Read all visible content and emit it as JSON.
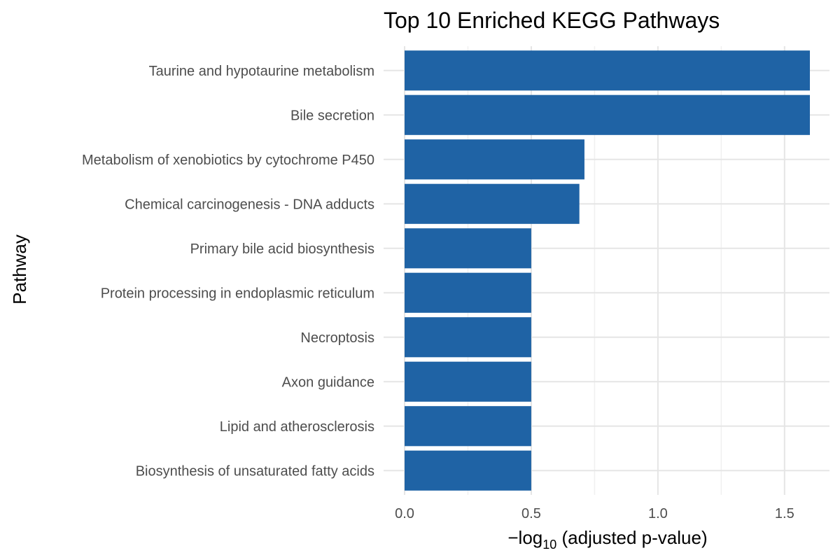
{
  "chart_data": {
    "type": "bar",
    "orientation": "horizontal",
    "title": "Top 10 Enriched KEGG Pathways",
    "xlabel_prefix": "−log",
    "xlabel_sub": "10",
    "xlabel_suffix": " (adjusted p-value)",
    "ylabel": "Pathway",
    "categories": [
      "Taurine and hypotaurine metabolism",
      "Bile secretion",
      "Metabolism of xenobiotics by cytochrome P450",
      "Chemical carcinogenesis - DNA adducts",
      "Primary bile acid biosynthesis",
      "Protein processing in endoplasmic reticulum",
      "Necroptosis",
      "Axon guidance",
      "Lipid and atherosclerosis",
      "Biosynthesis of unsaturated fatty acids"
    ],
    "values": [
      1.6,
      1.6,
      0.71,
      0.69,
      0.5,
      0.5,
      0.5,
      0.5,
      0.5,
      0.5
    ],
    "xlim": [
      0,
      1.6
    ],
    "xticks": [
      0.0,
      0.5,
      1.0,
      1.5
    ],
    "xtick_labels": [
      "0.0",
      "0.5",
      "1.0",
      "1.5"
    ],
    "grid": true,
    "legend": "none",
    "colors": {
      "bar": "#1f63a5",
      "grid_major": "#e5e5e5",
      "grid_minor": "#f0f0f0",
      "background": "#ffffff"
    }
  }
}
